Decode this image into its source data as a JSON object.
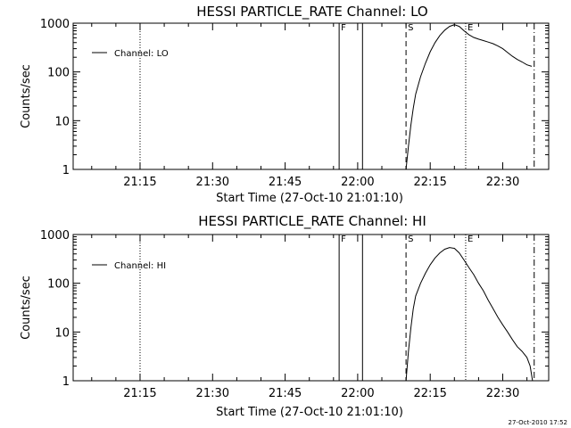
{
  "chart_data": [
    {
      "type": "line",
      "title": "HESSI PARTICLE_RATE Channel: LO",
      "xlabel": "Start Time (27-Oct-10 21:01:10)",
      "ylabel": "Counts/sec",
      "yscale": "log",
      "xlim": [
        "21:01:10",
        "22:39:30"
      ],
      "ylim": [
        1,
        1000
      ],
      "xticks": [
        "21:15",
        "21:30",
        "21:45",
        "22:00",
        "22:15",
        "22:30"
      ],
      "yticks": [
        "1",
        "10",
        "100",
        "1000"
      ],
      "legend": {
        "entries": [
          "Channel: LO"
        ],
        "position": "top-left"
      },
      "series": [
        {
          "name": "Channel: LO",
          "x": [
            "22:10:00",
            "22:10:30",
            "22:11:00",
            "22:11:30",
            "22:12:00",
            "22:13:00",
            "22:14:00",
            "22:15:00",
            "22:16:00",
            "22:17:00",
            "22:18:00",
            "22:19:00",
            "22:20:00",
            "22:21:00",
            "22:22:00",
            "22:23:00",
            "22:24:00",
            "22:25:00",
            "22:26:00",
            "22:27:00",
            "22:28:00",
            "22:29:00",
            "22:30:00",
            "22:31:00",
            "22:32:00",
            "22:33:00",
            "22:34:00",
            "22:35:00",
            "22:36:00"
          ],
          "y": [
            1,
            3,
            8,
            18,
            35,
            80,
            150,
            260,
            400,
            560,
            720,
            860,
            930,
            860,
            700,
            580,
            510,
            470,
            440,
            410,
            380,
            340,
            300,
            250,
            210,
            180,
            160,
            140,
            130
          ]
        }
      ],
      "vertical_markers": [
        {
          "time": "21:15:00",
          "style": "dotted",
          "label": ""
        },
        {
          "time": "21:56:10",
          "style": "solid",
          "label": "F"
        },
        {
          "time": "22:01:00",
          "style": "solid",
          "label": ""
        },
        {
          "time": "22:10:00",
          "style": "dashed",
          "label": "S"
        },
        {
          "time": "22:22:20",
          "style": "dotted",
          "label": "E"
        },
        {
          "time": "22:36:30",
          "style": "dashdot",
          "label": ""
        }
      ]
    },
    {
      "type": "line",
      "title": "HESSI PARTICLE_RATE Channel: HI",
      "xlabel": "Start Time (27-Oct-10 21:01:10)",
      "ylabel": "Counts/sec",
      "yscale": "log",
      "xlim": [
        "21:01:10",
        "22:39:30"
      ],
      "ylim": [
        1,
        1000
      ],
      "xticks": [
        "21:15",
        "21:30",
        "21:45",
        "22:00",
        "22:15",
        "22:30"
      ],
      "yticks": [
        "1",
        "10",
        "100",
        "1000"
      ],
      "legend": {
        "entries": [
          "Channel: HI"
        ],
        "position": "top-left"
      },
      "series": [
        {
          "name": "Channel: HI",
          "x": [
            "22:10:00",
            "22:10:30",
            "22:11:00",
            "22:11:30",
            "22:12:00",
            "22:13:00",
            "22:14:00",
            "22:15:00",
            "22:16:00",
            "22:17:00",
            "22:18:00",
            "22:19:00",
            "22:20:00",
            "22:21:00",
            "22:22:00",
            "22:23:00",
            "22:24:00",
            "22:25:00",
            "22:26:00",
            "22:27:00",
            "22:28:00",
            "22:29:00",
            "22:30:00",
            "22:31:00",
            "22:32:00",
            "22:33:00",
            "22:34:00",
            "22:35:00",
            "22:35:40",
            "22:36:10"
          ],
          "y": [
            1,
            4,
            12,
            30,
            55,
            100,
            160,
            240,
            330,
            420,
            500,
            540,
            520,
            420,
            300,
            210,
            150,
            100,
            70,
            45,
            30,
            20,
            14,
            10,
            7,
            5,
            4,
            3,
            2,
            1
          ]
        }
      ],
      "vertical_markers": [
        {
          "time": "21:15:00",
          "style": "dotted",
          "label": ""
        },
        {
          "time": "21:56:10",
          "style": "solid",
          "label": "F"
        },
        {
          "time": "22:01:00",
          "style": "solid",
          "label": ""
        },
        {
          "time": "22:10:00",
          "style": "dashed",
          "label": "S"
        },
        {
          "time": "22:22:20",
          "style": "dotted",
          "label": "E"
        },
        {
          "time": "22:36:30",
          "style": "dashdot",
          "label": ""
        }
      ]
    }
  ],
  "timestamp": "27-Oct-2010 17:52"
}
